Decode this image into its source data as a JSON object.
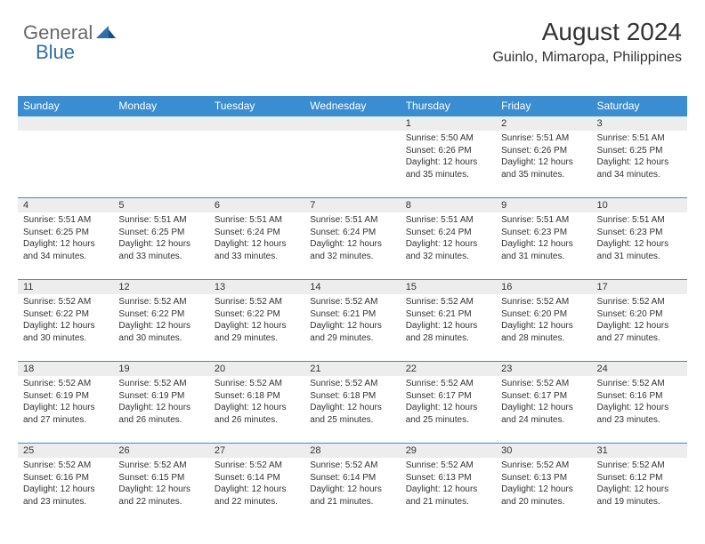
{
  "logo": {
    "text1": "General",
    "text2": "Blue"
  },
  "title": "August 2024",
  "subtitle": "Guinlo, Mimaropa, Philippines",
  "calendar": {
    "type": "table",
    "header_bg": "#3a8dd0",
    "header_text_color": "#ffffff",
    "daynum_bg": "#ededed",
    "daynum_border_top": "#3a8dd0",
    "text_color": "#333333",
    "font_size_header": 12,
    "font_size_daynum": 11,
    "font_size_body": 10,
    "columns": [
      "Sunday",
      "Monday",
      "Tuesday",
      "Wednesday",
      "Thursday",
      "Friday",
      "Saturday"
    ],
    "weeks": [
      [
        {
          "empty": true
        },
        {
          "empty": true
        },
        {
          "empty": true
        },
        {
          "empty": true
        },
        {
          "num": "1",
          "sunrise": "Sunrise: 5:50 AM",
          "sunset": "Sunset: 6:26 PM",
          "daylight": "Daylight: 12 hours and 35 minutes."
        },
        {
          "num": "2",
          "sunrise": "Sunrise: 5:51 AM",
          "sunset": "Sunset: 6:26 PM",
          "daylight": "Daylight: 12 hours and 35 minutes."
        },
        {
          "num": "3",
          "sunrise": "Sunrise: 5:51 AM",
          "sunset": "Sunset: 6:25 PM",
          "daylight": "Daylight: 12 hours and 34 minutes."
        }
      ],
      [
        {
          "num": "4",
          "sunrise": "Sunrise: 5:51 AM",
          "sunset": "Sunset: 6:25 PM",
          "daylight": "Daylight: 12 hours and 34 minutes."
        },
        {
          "num": "5",
          "sunrise": "Sunrise: 5:51 AM",
          "sunset": "Sunset: 6:25 PM",
          "daylight": "Daylight: 12 hours and 33 minutes."
        },
        {
          "num": "6",
          "sunrise": "Sunrise: 5:51 AM",
          "sunset": "Sunset: 6:24 PM",
          "daylight": "Daylight: 12 hours and 33 minutes."
        },
        {
          "num": "7",
          "sunrise": "Sunrise: 5:51 AM",
          "sunset": "Sunset: 6:24 PM",
          "daylight": "Daylight: 12 hours and 32 minutes."
        },
        {
          "num": "8",
          "sunrise": "Sunrise: 5:51 AM",
          "sunset": "Sunset: 6:24 PM",
          "daylight": "Daylight: 12 hours and 32 minutes."
        },
        {
          "num": "9",
          "sunrise": "Sunrise: 5:51 AM",
          "sunset": "Sunset: 6:23 PM",
          "daylight": "Daylight: 12 hours and 31 minutes."
        },
        {
          "num": "10",
          "sunrise": "Sunrise: 5:51 AM",
          "sunset": "Sunset: 6:23 PM",
          "daylight": "Daylight: 12 hours and 31 minutes."
        }
      ],
      [
        {
          "num": "11",
          "sunrise": "Sunrise: 5:52 AM",
          "sunset": "Sunset: 6:22 PM",
          "daylight": "Daylight: 12 hours and 30 minutes."
        },
        {
          "num": "12",
          "sunrise": "Sunrise: 5:52 AM",
          "sunset": "Sunset: 6:22 PM",
          "daylight": "Daylight: 12 hours and 30 minutes."
        },
        {
          "num": "13",
          "sunrise": "Sunrise: 5:52 AM",
          "sunset": "Sunset: 6:22 PM",
          "daylight": "Daylight: 12 hours and 29 minutes."
        },
        {
          "num": "14",
          "sunrise": "Sunrise: 5:52 AM",
          "sunset": "Sunset: 6:21 PM",
          "daylight": "Daylight: 12 hours and 29 minutes."
        },
        {
          "num": "15",
          "sunrise": "Sunrise: 5:52 AM",
          "sunset": "Sunset: 6:21 PM",
          "daylight": "Daylight: 12 hours and 28 minutes."
        },
        {
          "num": "16",
          "sunrise": "Sunrise: 5:52 AM",
          "sunset": "Sunset: 6:20 PM",
          "daylight": "Daylight: 12 hours and 28 minutes."
        },
        {
          "num": "17",
          "sunrise": "Sunrise: 5:52 AM",
          "sunset": "Sunset: 6:20 PM",
          "daylight": "Daylight: 12 hours and 27 minutes."
        }
      ],
      [
        {
          "num": "18",
          "sunrise": "Sunrise: 5:52 AM",
          "sunset": "Sunset: 6:19 PM",
          "daylight": "Daylight: 12 hours and 27 minutes."
        },
        {
          "num": "19",
          "sunrise": "Sunrise: 5:52 AM",
          "sunset": "Sunset: 6:19 PM",
          "daylight": "Daylight: 12 hours and 26 minutes."
        },
        {
          "num": "20",
          "sunrise": "Sunrise: 5:52 AM",
          "sunset": "Sunset: 6:18 PM",
          "daylight": "Daylight: 12 hours and 26 minutes."
        },
        {
          "num": "21",
          "sunrise": "Sunrise: 5:52 AM",
          "sunset": "Sunset: 6:18 PM",
          "daylight": "Daylight: 12 hours and 25 minutes."
        },
        {
          "num": "22",
          "sunrise": "Sunrise: 5:52 AM",
          "sunset": "Sunset: 6:17 PM",
          "daylight": "Daylight: 12 hours and 25 minutes."
        },
        {
          "num": "23",
          "sunrise": "Sunrise: 5:52 AM",
          "sunset": "Sunset: 6:17 PM",
          "daylight": "Daylight: 12 hours and 24 minutes."
        },
        {
          "num": "24",
          "sunrise": "Sunrise: 5:52 AM",
          "sunset": "Sunset: 6:16 PM",
          "daylight": "Daylight: 12 hours and 23 minutes."
        }
      ],
      [
        {
          "num": "25",
          "sunrise": "Sunrise: 5:52 AM",
          "sunset": "Sunset: 6:16 PM",
          "daylight": "Daylight: 12 hours and 23 minutes."
        },
        {
          "num": "26",
          "sunrise": "Sunrise: 5:52 AM",
          "sunset": "Sunset: 6:15 PM",
          "daylight": "Daylight: 12 hours and 22 minutes."
        },
        {
          "num": "27",
          "sunrise": "Sunrise: 5:52 AM",
          "sunset": "Sunset: 6:14 PM",
          "daylight": "Daylight: 12 hours and 22 minutes."
        },
        {
          "num": "28",
          "sunrise": "Sunrise: 5:52 AM",
          "sunset": "Sunset: 6:14 PM",
          "daylight": "Daylight: 12 hours and 21 minutes."
        },
        {
          "num": "29",
          "sunrise": "Sunrise: 5:52 AM",
          "sunset": "Sunset: 6:13 PM",
          "daylight": "Daylight: 12 hours and 21 minutes."
        },
        {
          "num": "30",
          "sunrise": "Sunrise: 5:52 AM",
          "sunset": "Sunset: 6:13 PM",
          "daylight": "Daylight: 12 hours and 20 minutes."
        },
        {
          "num": "31",
          "sunrise": "Sunrise: 5:52 AM",
          "sunset": "Sunset: 6:12 PM",
          "daylight": "Daylight: 12 hours and 19 minutes."
        }
      ]
    ]
  }
}
